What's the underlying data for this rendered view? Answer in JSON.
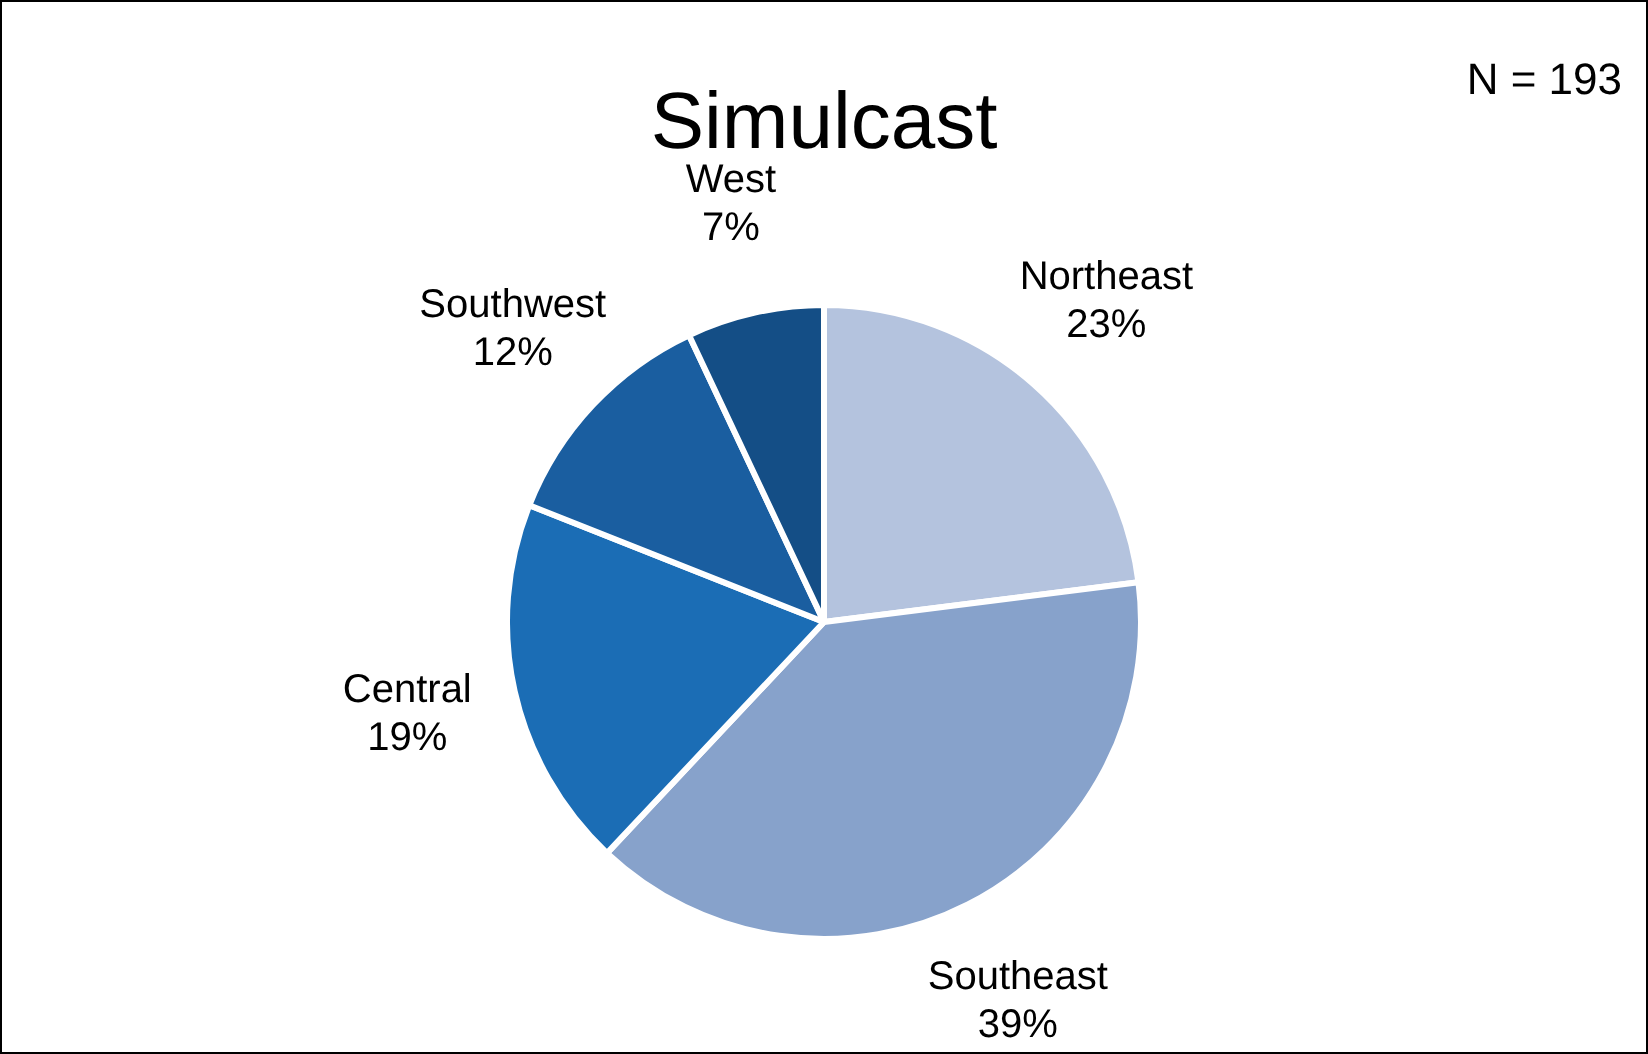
{
  "chart_data": {
    "type": "pie",
    "title": "Simulcast",
    "categories": [
      "Northeast",
      "Southeast",
      "Central",
      "Southwest",
      "West"
    ],
    "values": [
      23,
      39,
      19,
      12,
      7
    ],
    "value_labels": [
      "23%",
      "39%",
      "19%",
      "12%",
      "7%"
    ],
    "colors": [
      "#b4c3de",
      "#87a2cb",
      "#1b6db5",
      "#1a5ea0",
      "#144e86"
    ],
    "annotations": [
      "N = 193"
    ],
    "legend": false
  }
}
